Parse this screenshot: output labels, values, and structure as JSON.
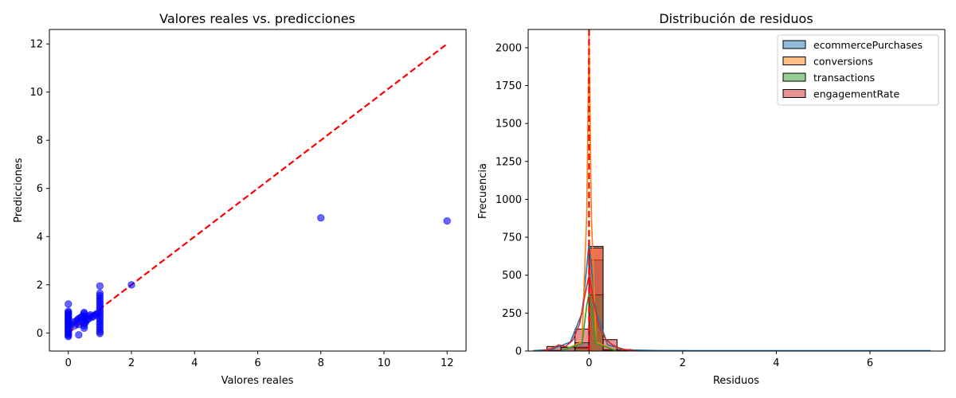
{
  "chart_data": [
    {
      "type": "scatter",
      "title": "Valores reales vs. predicciones",
      "xlabel": "Valores reales",
      "ylabel": "Predicciones",
      "xlim": [
        -0.6,
        12.6
      ],
      "ylim": [
        -0.75,
        12.6
      ],
      "xticks": [
        0,
        2,
        4,
        6,
        8,
        10,
        12
      ],
      "yticks": [
        0,
        2,
        4,
        6,
        8,
        10,
        12
      ],
      "point_color": "#0000ff",
      "reference_line": {
        "from": [
          0,
          0
        ],
        "to": [
          12,
          12
        ],
        "color": "#ff0000",
        "style": "dashed"
      },
      "points": [
        [
          0,
          -0.15
        ],
        [
          0,
          -0.1
        ],
        [
          0,
          -0.05
        ],
        [
          0,
          0.0
        ],
        [
          0,
          0.05
        ],
        [
          0,
          0.1
        ],
        [
          0,
          0.15
        ],
        [
          0,
          0.2
        ],
        [
          0,
          0.25
        ],
        [
          0,
          0.3
        ],
        [
          0,
          0.35
        ],
        [
          0,
          0.4
        ],
        [
          0,
          0.45
        ],
        [
          0,
          0.5
        ],
        [
          0,
          0.55
        ],
        [
          0,
          0.6
        ],
        [
          0,
          0.65
        ],
        [
          0,
          0.7
        ],
        [
          0,
          0.75
        ],
        [
          0,
          0.8
        ],
        [
          0,
          0.85
        ],
        [
          0,
          0.9
        ],
        [
          0,
          1.2
        ],
        [
          0.1,
          0.35
        ],
        [
          0.15,
          0.45
        ],
        [
          0.2,
          0.3
        ],
        [
          0.25,
          0.5
        ],
        [
          0.3,
          0.55
        ],
        [
          0.33,
          0.6
        ],
        [
          0.33,
          0.35
        ],
        [
          0.33,
          -0.08
        ],
        [
          0.4,
          0.65
        ],
        [
          0.45,
          0.7
        ],
        [
          0.5,
          0.2
        ],
        [
          0.5,
          0.3
        ],
        [
          0.5,
          0.4
        ],
        [
          0.5,
          0.5
        ],
        [
          0.5,
          0.6
        ],
        [
          0.5,
          0.7
        ],
        [
          0.5,
          0.8
        ],
        [
          0.5,
          0.85
        ],
        [
          0.55,
          0.45
        ],
        [
          0.6,
          0.55
        ],
        [
          0.65,
          0.6
        ],
        [
          0.67,
          0.7
        ],
        [
          0.7,
          0.75
        ],
        [
          0.75,
          0.65
        ],
        [
          0.8,
          0.7
        ],
        [
          0.85,
          0.75
        ],
        [
          0.9,
          0.8
        ],
        [
          1,
          -0.02
        ],
        [
          1,
          0.05
        ],
        [
          1,
          0.15
        ],
        [
          1,
          0.25
        ],
        [
          1,
          0.35
        ],
        [
          1,
          0.45
        ],
        [
          1,
          0.55
        ],
        [
          1,
          0.65
        ],
        [
          1,
          0.75
        ],
        [
          1,
          0.85
        ],
        [
          1,
          0.95
        ],
        [
          1,
          1.05
        ],
        [
          1,
          1.15
        ],
        [
          1,
          1.25
        ],
        [
          1,
          1.35
        ],
        [
          1,
          1.45
        ],
        [
          1,
          1.55
        ],
        [
          1,
          1.65
        ],
        [
          1,
          1.95
        ],
        [
          2,
          2.0
        ],
        [
          8,
          4.78
        ],
        [
          12,
          4.65
        ]
      ]
    },
    {
      "type": "histogram",
      "title": "Distribución de residuos",
      "xlabel": "Residuos",
      "ylabel": "Frecuencia",
      "xlim": [
        -1.3,
        7.6
      ],
      "ylim": [
        0,
        2120
      ],
      "xticks": [
        0,
        2,
        4,
        6
      ],
      "yticks": [
        0,
        250,
        500,
        750,
        1000,
        1250,
        1500,
        1750,
        2000
      ],
      "legend_position": "top-right",
      "bin_width": 0.3,
      "vertical_line": {
        "x": 0,
        "color": "#ff0000",
        "style": "dashed"
      },
      "series": [
        {
          "name": "ecommercePurchases",
          "color": "#1f77b4",
          "bins": [
            [
              -0.9,
              5
            ],
            [
              -0.6,
              25
            ],
            [
              -0.3,
              55
            ],
            [
              0.0,
              600
            ],
            [
              0.3,
              10
            ],
            [
              0.6,
              3
            ]
          ],
          "kde": [
            [
              -1.2,
              2
            ],
            [
              -0.8,
              10
            ],
            [
              -0.4,
              60
            ],
            [
              -0.15,
              250
            ],
            [
              -0.05,
              550
            ],
            [
              0,
              720
            ],
            [
              0.05,
              560
            ],
            [
              0.15,
              260
            ],
            [
              0.4,
              40
            ],
            [
              0.8,
              8
            ],
            [
              1.5,
              3
            ],
            [
              3.0,
              2
            ],
            [
              5.0,
              2
            ],
            [
              7.3,
              2
            ]
          ]
        },
        {
          "name": "conversions",
          "color": "#ff7f0e",
          "bins": [
            [
              -0.3,
              25
            ],
            [
              0.0,
              690
            ],
            [
              0.3,
              8
            ]
          ],
          "kde": [
            [
              -0.6,
              0
            ],
            [
              -0.15,
              60
            ],
            [
              -0.05,
              900
            ],
            [
              -0.01,
              1850
            ],
            [
              0,
              2080
            ],
            [
              0.01,
              1850
            ],
            [
              0.05,
              900
            ],
            [
              0.15,
              60
            ],
            [
              0.6,
              0
            ]
          ]
        },
        {
          "name": "transactions",
          "color": "#2ca02c",
          "bins": [
            [
              -0.3,
              20
            ],
            [
              0.0,
              370
            ],
            [
              0.3,
              5
            ]
          ],
          "kde": [
            [
              -0.6,
              0
            ],
            [
              -0.15,
              50
            ],
            [
              -0.05,
              300
            ],
            [
              0,
              380
            ],
            [
              0.05,
              300
            ],
            [
              0.15,
              50
            ],
            [
              0.6,
              0
            ]
          ]
        },
        {
          "name": "engagementRate",
          "color": "#d62728",
          "bins": [
            [
              -0.9,
              30
            ],
            [
              -0.6,
              25
            ],
            [
              -0.3,
              145
            ],
            [
              0.0,
              680
            ],
            [
              0.3,
              75
            ],
            [
              0.6,
              10
            ]
          ],
          "kde": [
            [
              -1.0,
              2
            ],
            [
              -0.8,
              15
            ],
            [
              -0.65,
              40
            ],
            [
              -0.5,
              30
            ],
            [
              -0.35,
              70
            ],
            [
              -0.2,
              180
            ],
            [
              -0.08,
              380
            ],
            [
              0,
              500
            ],
            [
              0.08,
              360
            ],
            [
              0.2,
              170
            ],
            [
              0.35,
              80
            ],
            [
              0.5,
              40
            ],
            [
              0.7,
              12
            ],
            [
              1.0,
              2
            ]
          ]
        }
      ]
    }
  ]
}
